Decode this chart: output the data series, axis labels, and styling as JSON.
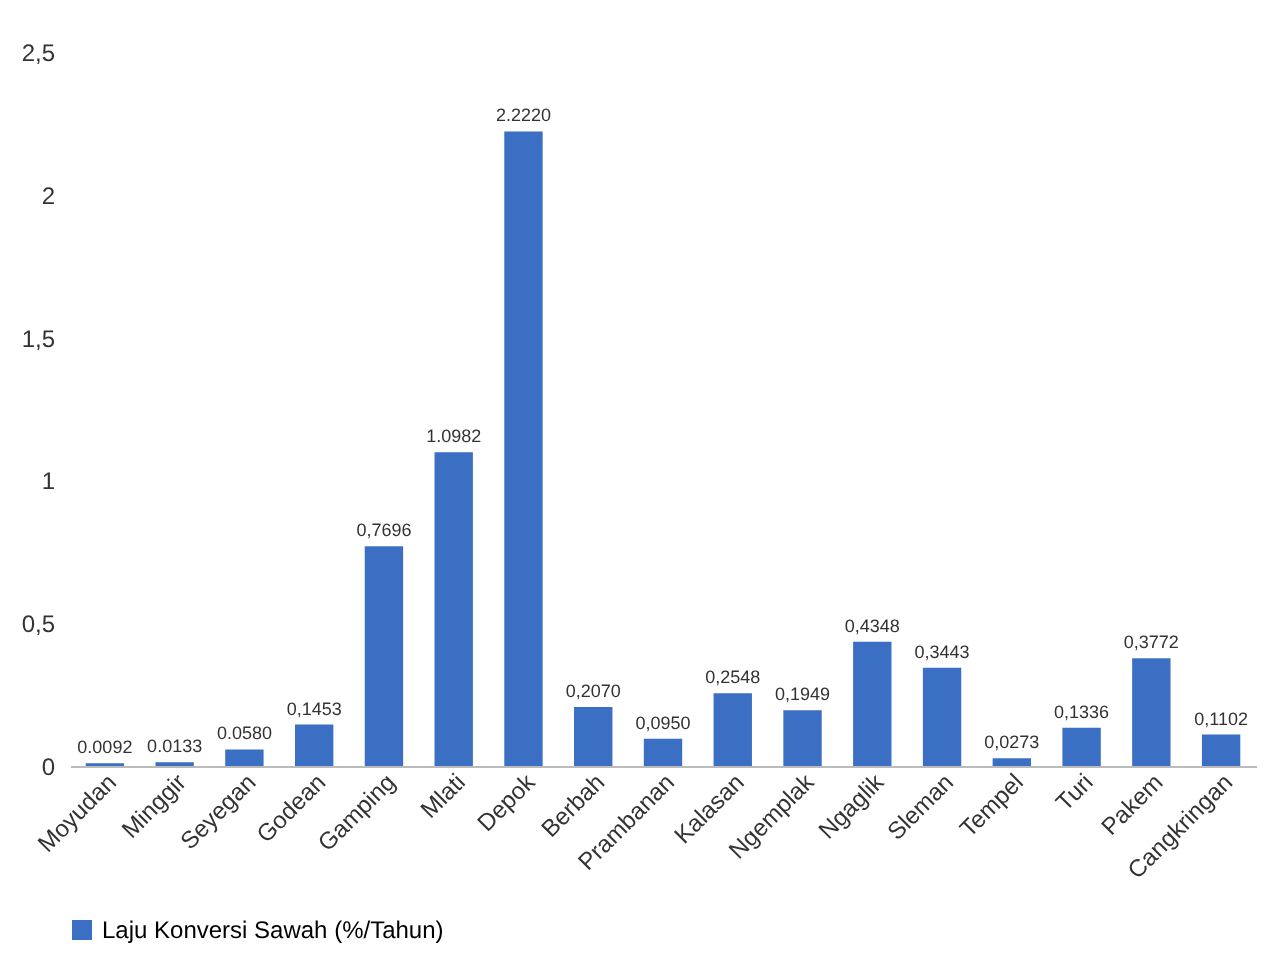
{
  "chart_data": {
    "type": "bar",
    "categories": [
      "Moyudan",
      "Minggir",
      "Seyegan",
      "Godean",
      "Gamping",
      "Mlati",
      "Depok",
      "Berbah",
      "Prambanan",
      "Kalasan",
      "Ngemplak",
      "Ngaglik",
      "Sleman",
      "Tempel",
      "Turi",
      "Pakem",
      "Cangkringan"
    ],
    "series": [
      {
        "name": "Laju Konversi Sawah (%/Tahun)",
        "color": "#3a6fc4",
        "values": [
          0.0092,
          0.0133,
          0.058,
          0.1453,
          0.7696,
          1.0982,
          2.222,
          0.207,
          0.095,
          0.2548,
          0.1949,
          0.4348,
          0.3443,
          0.0273,
          0.1336,
          0.3772,
          0.1102
        ],
        "value_labels": [
          "0.0092",
          "0.0133",
          "0.0580",
          "0,1453",
          "0,7696",
          "1.0982",
          "2.2220",
          "0,2070",
          "0,0950",
          "0,2548",
          "0,1949",
          "0,4348",
          "0,3443",
          "0,0273",
          "0,1336",
          "0,3772",
          "0,1102"
        ]
      }
    ],
    "ylim": [
      0,
      2.5
    ],
    "yticks": [
      0,
      {
        "value": 0.5,
        "label": "0,5"
      },
      1,
      {
        "value": 1.5,
        "label": "1,5"
      },
      2,
      {
        "value": 2.5,
        "label": "2,5"
      }
    ],
    "grid": false,
    "legend": "bottom"
  }
}
